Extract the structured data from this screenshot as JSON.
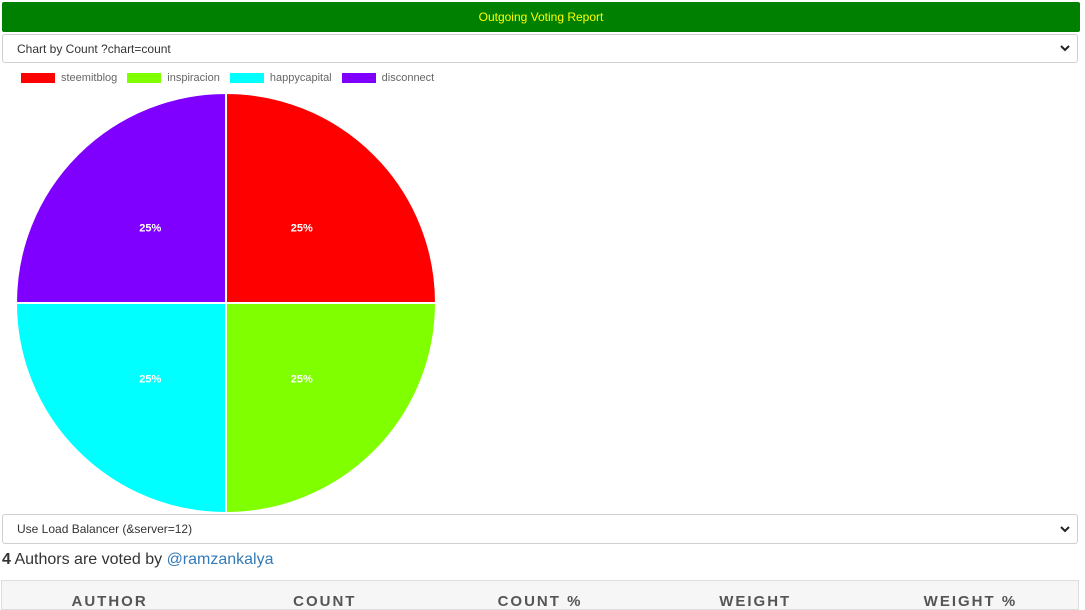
{
  "header": {
    "title": "Outgoing Voting Report"
  },
  "chart_selector": {
    "value": "Chart by Count ?chart=count"
  },
  "server_selector": {
    "value": "Use Load Balancer (&server=12)"
  },
  "summary": {
    "count": "4",
    "text": " Authors are voted by ",
    "user": "@ramzankalya"
  },
  "table": {
    "headers": [
      "AUTHOR",
      "COUNT",
      "COUNT %",
      "WEIGHT",
      "WEIGHT %"
    ]
  },
  "chart_data": {
    "type": "pie",
    "categories": [
      "steemitblog",
      "inspiracion",
      "happycapital",
      "disconnect"
    ],
    "values": [
      25,
      25,
      25,
      25
    ],
    "labels": [
      "25%",
      "25%",
      "25%",
      "25%"
    ],
    "colors": [
      "#ff0000",
      "#80ff00",
      "#00ffff",
      "#8000ff"
    ],
    "legend": "top-left"
  }
}
